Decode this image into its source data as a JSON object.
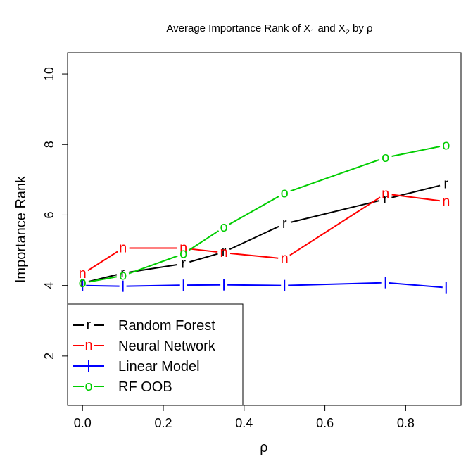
{
  "chart_data": {
    "type": "line",
    "title": "Average Importance Rank of X1 and X2 by ρ",
    "title_parts": {
      "pre": "Average Importance Rank of X",
      "sub1": "1",
      "mid": " and X",
      "sub2": "2",
      "post": " by ρ"
    },
    "xlabel": "ρ",
    "ylabel": "Importance Rank",
    "xlim": [
      -0.037,
      0.937
    ],
    "ylim": [
      0.6,
      10.6
    ],
    "xticks": [
      0.0,
      0.2,
      0.4,
      0.6,
      0.8
    ],
    "xtick_labels": [
      "0.0",
      "0.2",
      "0.4",
      "0.6",
      "0.8"
    ],
    "yticks": [
      2,
      4,
      6,
      8,
      10
    ],
    "ytick_labels": [
      "2",
      "4",
      "6",
      "8",
      "10"
    ],
    "grid": false,
    "legend_position": "bottom-left",
    "x": [
      0.0,
      0.1,
      0.25,
      0.35,
      0.5,
      0.75,
      0.9
    ],
    "series": [
      {
        "name": "Random Forest",
        "symbol": "r",
        "color": "#000000",
        "values": [
          4.07,
          4.35,
          4.62,
          4.95,
          5.75,
          6.45,
          6.88
        ]
      },
      {
        "name": "Neural Network",
        "symbol": "n",
        "color": "#ff0000",
        "values": [
          4.33,
          5.06,
          5.06,
          4.93,
          4.76,
          6.6,
          6.38
        ]
      },
      {
        "name": "Linear Model",
        "symbol": "|",
        "color": "#0000ff",
        "values": [
          4.0,
          3.98,
          4.01,
          4.02,
          4.0,
          4.08,
          3.94
        ]
      },
      {
        "name": "RF OOB",
        "symbol": "o",
        "color": "#00cd00",
        "values": [
          4.07,
          4.28,
          4.9,
          5.65,
          6.62,
          7.63,
          7.98
        ]
      }
    ]
  }
}
